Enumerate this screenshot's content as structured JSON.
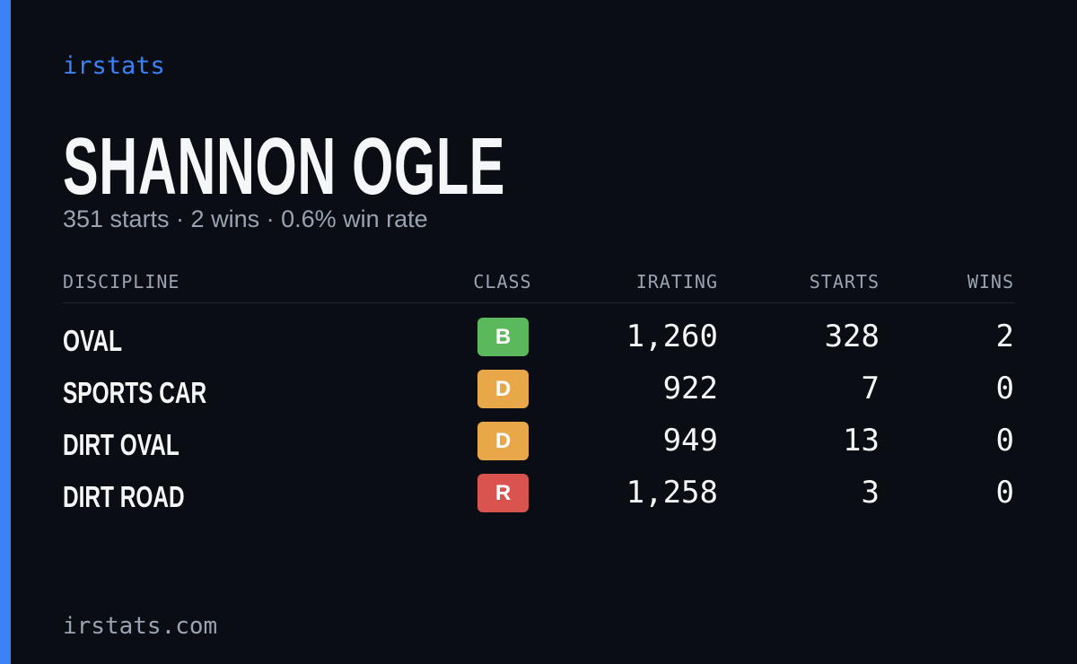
{
  "brand": "irstats",
  "header": {
    "title": "SHANNON OGLE",
    "subtitle": "351 starts · 2 wins · 0.6% win rate"
  },
  "table": {
    "columns": [
      "DISCIPLINE",
      "CLASS",
      "IRATING",
      "STARTS",
      "WINS"
    ],
    "rows": [
      [
        "OVAL",
        "B",
        "1,260",
        "328",
        "2"
      ],
      [
        "SPORTS CAR",
        "D",
        "922",
        "7",
        "0"
      ],
      [
        "DIRT OVAL",
        "D",
        "949",
        "13",
        "0"
      ],
      [
        "DIRT ROAD",
        "R",
        "1,258",
        "3",
        "0"
      ]
    ],
    "class_colors": {
      "B": "#5cb85c",
      "D": "#e8a84a",
      "R": "#d9534f"
    }
  },
  "footer": "irstats.com"
}
